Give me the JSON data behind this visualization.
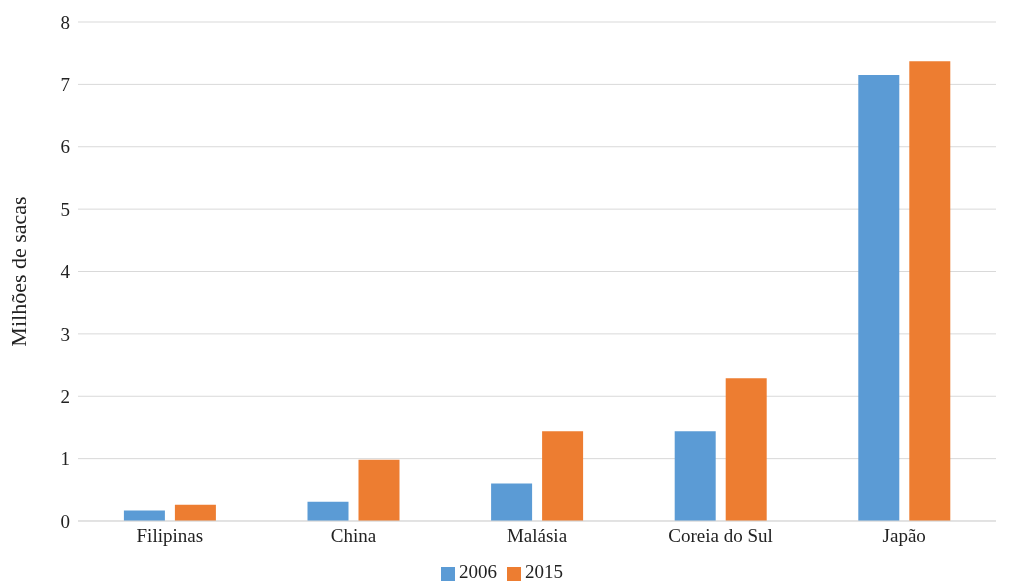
{
  "chart_data": {
    "type": "bar",
    "ylabel": "Milhões de sacas",
    "categories": [
      "Filipinas",
      "China",
      "Malásia",
      "Coreia do Sul",
      "Japão"
    ],
    "series": [
      {
        "name": "2006",
        "color": "#5b9bd5",
        "values": [
          0.17,
          0.31,
          0.6,
          1.44,
          7.15
        ]
      },
      {
        "name": "2015",
        "color": "#ed7d31",
        "values": [
          0.26,
          0.98,
          1.44,
          2.29,
          7.37
        ]
      }
    ],
    "ylim": [
      0,
      8
    ],
    "yticks": [
      0,
      1,
      2,
      3,
      4,
      5,
      6,
      7,
      8
    ],
    "grid": "y",
    "legend": "bottom"
  }
}
